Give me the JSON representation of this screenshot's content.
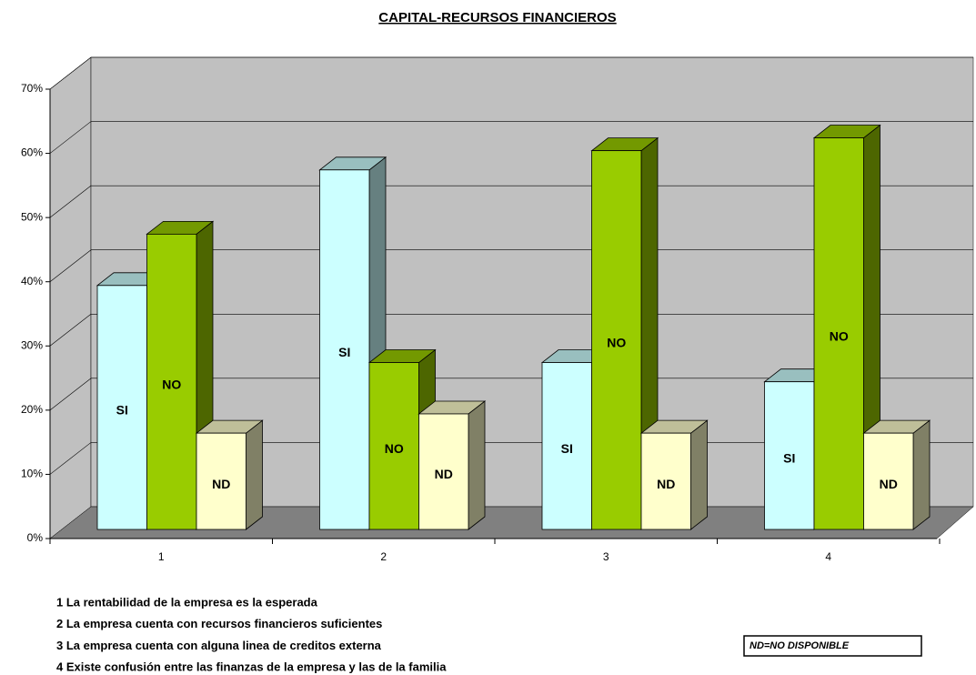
{
  "chart_data": {
    "type": "bar3d",
    "title": "CAPITAL-RECURSOS FINANCIEROS",
    "categories": [
      "1",
      "2",
      "3",
      "4"
    ],
    "series": [
      {
        "name": "SI",
        "color": "#ccffff",
        "values": [
          38,
          56,
          26,
          23
        ]
      },
      {
        "name": "NO",
        "color": "#99cc00",
        "values": [
          46,
          26,
          59,
          61
        ]
      },
      {
        "name": "ND",
        "color": "#ffffcc",
        "values": [
          15,
          18,
          15,
          15
        ]
      }
    ],
    "ylim": [
      0,
      70
    ],
    "yticks": [
      {
        "value": 0,
        "label": "0%"
      },
      {
        "value": 10,
        "label": "10%"
      },
      {
        "value": 20,
        "label": "20%"
      },
      {
        "value": 30,
        "label": "30%"
      },
      {
        "value": 40,
        "label": "40%"
      },
      {
        "value": 50,
        "label": "50%"
      },
      {
        "value": 60,
        "label": "60%"
      },
      {
        "value": 70,
        "label": "70%"
      }
    ],
    "grid": true,
    "notes": [
      "1 La rentabilidad de la empresa es la esperada",
      "2 La empresa cuenta con recursos financieros suficientes",
      "3 La empresa cuenta con alguna linea de creditos externa",
      "4 Existe confusión entre las finanzas de la empresa y las de la familia"
    ],
    "annotation": "ND=NO DISPONIBLE"
  }
}
